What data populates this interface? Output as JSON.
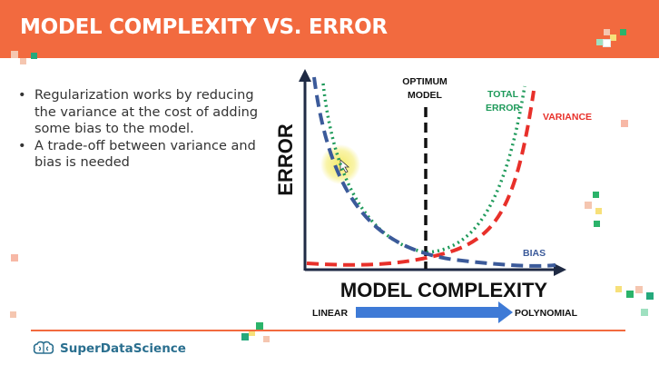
{
  "slide": {
    "title": "MODEL COMPLEXITY VS. ERROR",
    "bullets": [
      "Regularization works by reducing the variance at the cost of adding some bias to the model.",
      "A trade-off between variance and bias is needed"
    ]
  },
  "diagram": {
    "y_axis_label": "ERROR",
    "x_axis_label": "MODEL COMPLEXITY",
    "optimum_label_line1": "OPTIMUM",
    "optimum_label_line2": "MODEL",
    "total_error_line1": "TOTAL",
    "total_error_line2": "ERROR",
    "variance_label": "VARIANCE",
    "bias_label": "BIAS",
    "scale_left": "LINEAR",
    "scale_right": "POLYNOMIAL"
  },
  "footer": {
    "brand": "SuperDataScience"
  },
  "colors": {
    "header": "#f26a3f",
    "bias": "#3b5a9a",
    "variance": "#e8302a",
    "total_error": "#1e9a5a",
    "arrow": "#3e7ad6",
    "brand": "#2a6f8f"
  }
}
